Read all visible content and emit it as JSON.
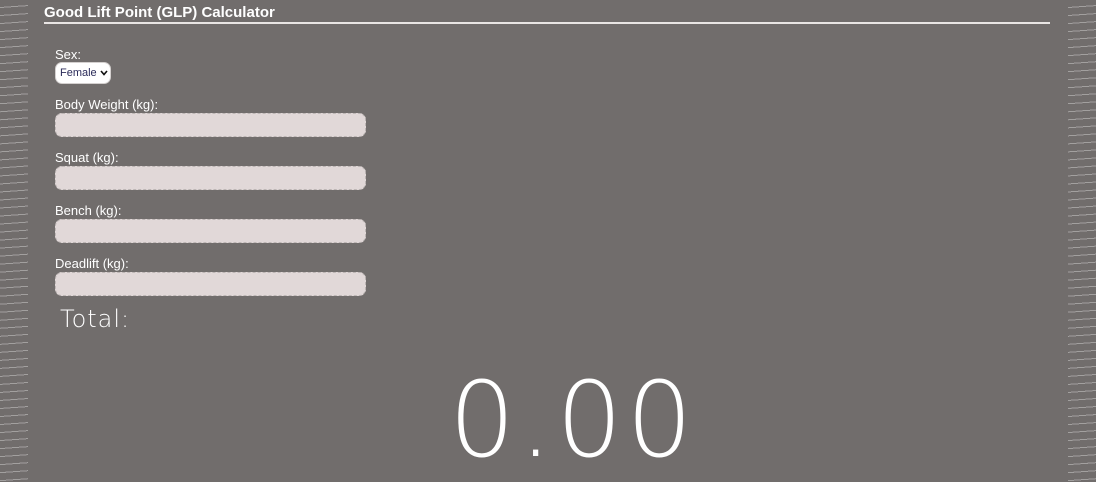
{
  "title": "Good Lift Point (GLP) Calculator",
  "sex": {
    "label": "Sex:",
    "selected": "Female",
    "icon": "chevron-down-icon"
  },
  "fields": {
    "body_weight": {
      "label": "Body Weight (kg):",
      "value": ""
    },
    "squat": {
      "label": "Squat (kg):",
      "value": ""
    },
    "bench": {
      "label": "Bench (kg):",
      "value": ""
    },
    "deadlift": {
      "label": "Deadlift (kg):",
      "value": ""
    }
  },
  "total": {
    "label": "Total:",
    "value": "0.00"
  },
  "colors": {
    "background": "#716d6c",
    "input_fill": "#e1d8d8",
    "text": "#ffffff"
  }
}
